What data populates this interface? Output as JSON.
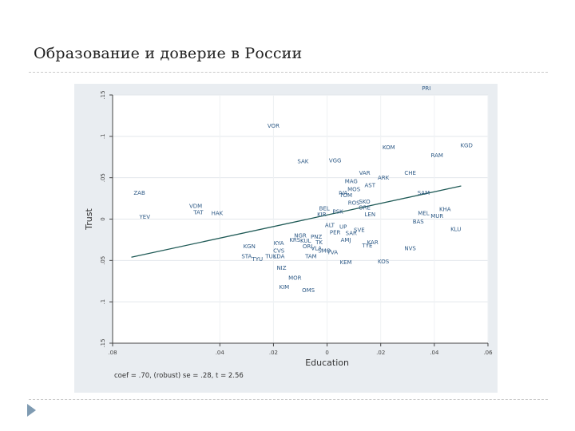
{
  "slide": {
    "title": "Образование и доверие в России"
  },
  "chart_data": {
    "type": "scatter",
    "xlabel": "Education",
    "ylabel": "Trust",
    "footnote": "coef = .70, (robust) se = .28, t = 2.56",
    "xlim": [
      -0.08,
      0.06
    ],
    "ylim": [
      -0.15,
      0.15
    ],
    "x_ticks": [
      -0.08,
      -0.04,
      -0.02,
      0,
      0.02,
      0.04,
      0.06
    ],
    "x_tick_labels": [
      ".08",
      ".04",
      ".02",
      "0",
      ".02",
      ".04",
      ".06"
    ],
    "y_ticks": [
      -0.15,
      -0.1,
      -0.05,
      0,
      0.05,
      0.1,
      0.15
    ],
    "y_tick_labels": [
      ".15",
      ".1",
      ".05",
      "0",
      ".05",
      ".1",
      ".15"
    ],
    "fit_line": {
      "slope": 0.7,
      "intercept": 0.005,
      "x": [
        -0.073,
        0.05
      ]
    },
    "grid": true,
    "colors": {
      "plot_bg": "#ffffff",
      "outer_bg": "#e9edf1",
      "points": "#2e5a86",
      "fit": "#1f5a56",
      "axis": "#444444"
    },
    "points": [
      {
        "label": "PRI",
        "x": 0.037,
        "y": 0.158
      },
      {
        "label": "VOR",
        "x": -0.02,
        "y": 0.113
      },
      {
        "label": "KGD",
        "x": 0.052,
        "y": 0.089
      },
      {
        "label": "KOM",
        "x": 0.023,
        "y": 0.087
      },
      {
        "label": "RAM",
        "x": 0.041,
        "y": 0.077
      },
      {
        "label": "SAK",
        "x": -0.009,
        "y": 0.07
      },
      {
        "label": "VGG",
        "x": 0.003,
        "y": 0.071
      },
      {
        "label": "VAR",
        "x": 0.014,
        "y": 0.056
      },
      {
        "label": "CHE",
        "x": 0.031,
        "y": 0.056
      },
      {
        "label": "ARK",
        "x": 0.021,
        "y": 0.05
      },
      {
        "label": "MAG",
        "x": 0.009,
        "y": 0.046
      },
      {
        "label": "AST",
        "x": 0.016,
        "y": 0.041
      },
      {
        "label": "MOS",
        "x": 0.01,
        "y": 0.036
      },
      {
        "label": "IVA",
        "x": 0.006,
        "y": 0.032
      },
      {
        "label": "TOM",
        "x": 0.007,
        "y": 0.029
      },
      {
        "label": "SAM",
        "x": 0.036,
        "y": 0.032
      },
      {
        "label": "ZAB",
        "x": -0.07,
        "y": 0.032
      },
      {
        "label": "ROS",
        "x": 0.01,
        "y": 0.02
      },
      {
        "label": "SKO",
        "x": 0.014,
        "y": 0.021
      },
      {
        "label": "ORE",
        "x": 0.014,
        "y": 0.014
      },
      {
        "label": "VDM",
        "x": -0.049,
        "y": 0.016
      },
      {
        "label": "TAT",
        "x": -0.048,
        "y": 0.008
      },
      {
        "label": "HAK",
        "x": -0.041,
        "y": 0.007
      },
      {
        "label": "YEV",
        "x": -0.068,
        "y": 0.003
      },
      {
        "label": "BEL",
        "x": -0.001,
        "y": 0.013
      },
      {
        "label": "KIR",
        "x": -0.002,
        "y": 0.006
      },
      {
        "label": "PSK",
        "x": 0.004,
        "y": 0.009
      },
      {
        "label": "KHA",
        "x": 0.044,
        "y": 0.012
      },
      {
        "label": "MEL",
        "x": 0.036,
        "y": 0.007
      },
      {
        "label": "MUR",
        "x": 0.041,
        "y": 0.004
      },
      {
        "label": "LEN",
        "x": 0.016,
        "y": 0.006
      },
      {
        "label": "BAS",
        "x": 0.034,
        "y": -0.003
      },
      {
        "label": "KLU",
        "x": 0.048,
        "y": -0.012
      },
      {
        "label": "ALT",
        "x": 0.001,
        "y": -0.007
      },
      {
        "label": "UP",
        "x": 0.006,
        "y": -0.009
      },
      {
        "label": "PER",
        "x": 0.003,
        "y": -0.016
      },
      {
        "label": "SAR",
        "x": 0.009,
        "y": -0.017
      },
      {
        "label": "SVE",
        "x": 0.012,
        "y": -0.013
      },
      {
        "label": "NGR",
        "x": -0.01,
        "y": -0.02
      },
      {
        "label": "PNZ",
        "x": -0.004,
        "y": -0.021
      },
      {
        "label": "KRS",
        "x": -0.012,
        "y": -0.025
      },
      {
        "label": "KUL",
        "x": -0.008,
        "y": -0.026
      },
      {
        "label": "AMJ",
        "x": 0.007,
        "y": -0.025
      },
      {
        "label": "KYA",
        "x": -0.018,
        "y": -0.029
      },
      {
        "label": "TK",
        "x": -0.003,
        "y": -0.028
      },
      {
        "label": "KAR",
        "x": 0.017,
        "y": -0.028
      },
      {
        "label": "ORL",
        "x": -0.007,
        "y": -0.033
      },
      {
        "label": "VLA",
        "x": -0.004,
        "y": -0.035
      },
      {
        "label": "TYE",
        "x": 0.015,
        "y": -0.032
      },
      {
        "label": "NVS",
        "x": 0.031,
        "y": -0.035
      },
      {
        "label": "KGN",
        "x": -0.029,
        "y": -0.033
      },
      {
        "label": "CVS",
        "x": -0.018,
        "y": -0.038
      },
      {
        "label": "SMO",
        "x": -0.001,
        "y": -0.038
      },
      {
        "label": "TVA",
        "x": 0.002,
        "y": -0.04
      },
      {
        "label": "STA",
        "x": -0.03,
        "y": -0.045
      },
      {
        "label": "TYU",
        "x": -0.026,
        "y": -0.048
      },
      {
        "label": "TUL",
        "x": -0.021,
        "y": -0.045
      },
      {
        "label": "KDA",
        "x": -0.018,
        "y": -0.045
      },
      {
        "label": "TAM",
        "x": -0.006,
        "y": -0.045
      },
      {
        "label": "KEM",
        "x": 0.007,
        "y": -0.052
      },
      {
        "label": "KOS",
        "x": 0.021,
        "y": -0.051
      },
      {
        "label": "NIZ",
        "x": -0.017,
        "y": -0.059
      },
      {
        "label": "MOR",
        "x": -0.012,
        "y": -0.071
      },
      {
        "label": "KIM",
        "x": -0.016,
        "y": -0.082
      },
      {
        "label": "OMS",
        "x": -0.007,
        "y": -0.086
      }
    ]
  }
}
